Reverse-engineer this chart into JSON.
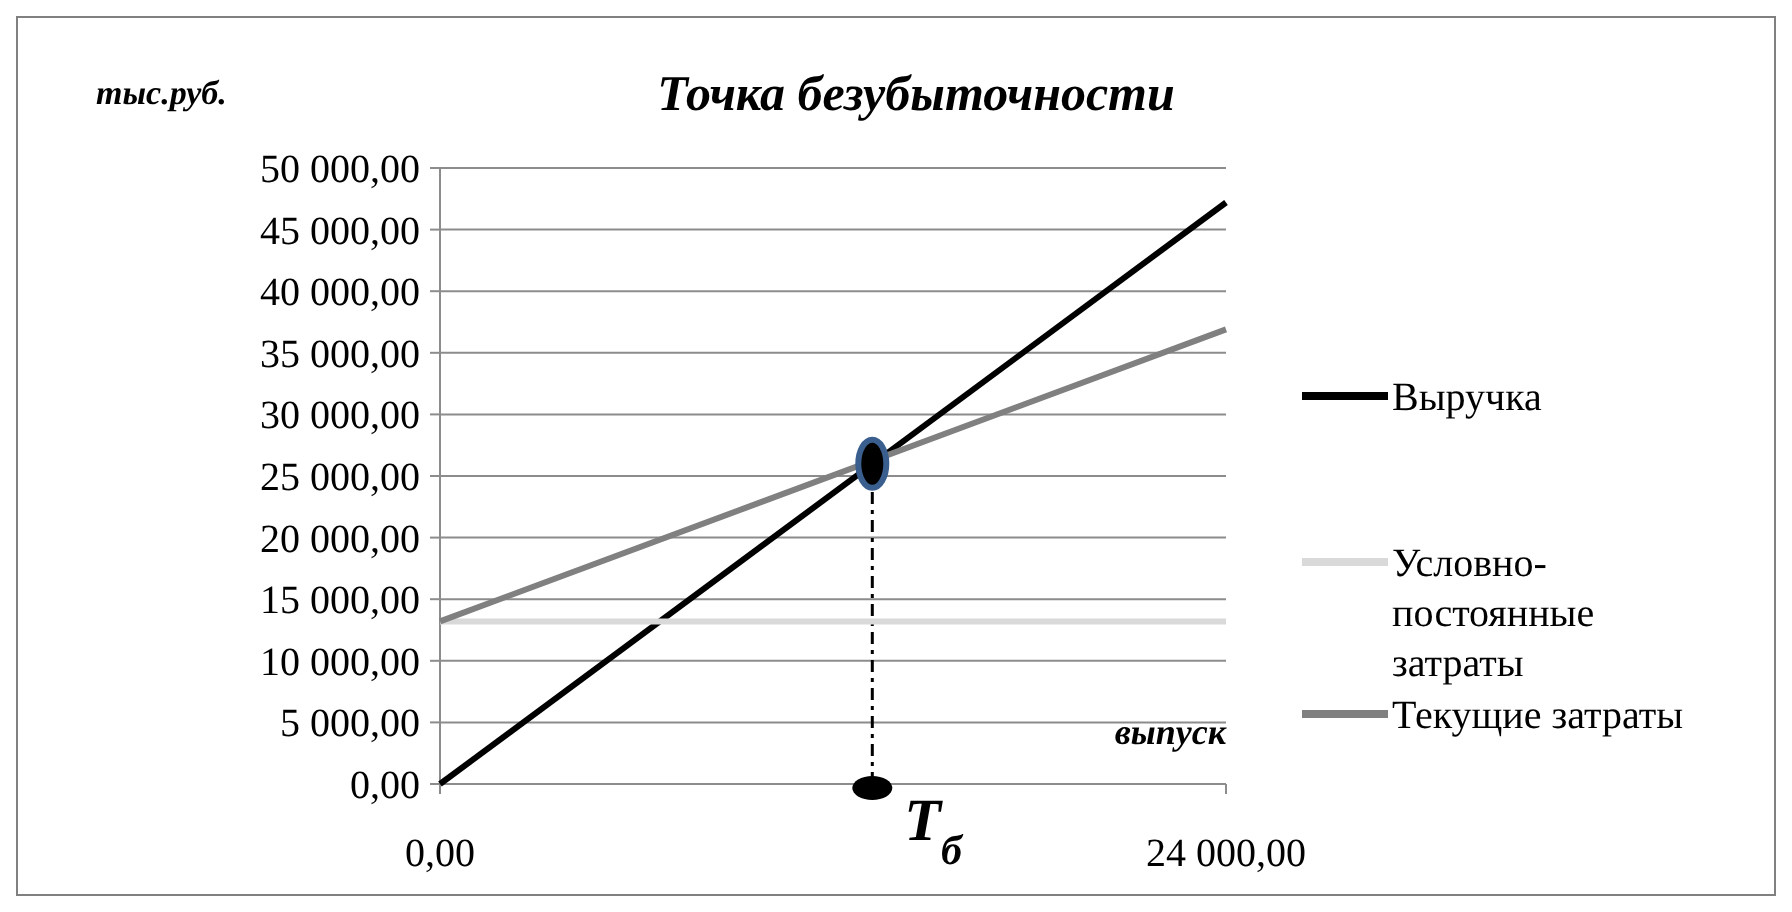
{
  "chart_data": {
    "type": "line",
    "title": "Точка безубыточности",
    "xlabel": "выпуск",
    "ylabel": "тыс.руб.",
    "xlim": [
      0,
      24000
    ],
    "ylim": [
      0,
      50000
    ],
    "xticks": [
      {
        "value": 0,
        "label": "0,00"
      },
      {
        "value": 24000,
        "label": "24 000,00"
      }
    ],
    "yticks": [
      {
        "value": 0,
        "label": "0,00"
      },
      {
        "value": 5000,
        "label": "5 000,00"
      },
      {
        "value": 10000,
        "label": "10 000,00"
      },
      {
        "value": 15000,
        "label": "15 000,00"
      },
      {
        "value": 20000,
        "label": "20 000,00"
      },
      {
        "value": 25000,
        "label": "25 000,00"
      },
      {
        "value": 30000,
        "label": "30 000,00"
      },
      {
        "value": 35000,
        "label": "35 000,00"
      },
      {
        "value": 40000,
        "label": "40 000,00"
      },
      {
        "value": 45000,
        "label": "45 000,00"
      },
      {
        "value": 50000,
        "label": "50 000,00"
      }
    ],
    "x": [
      0,
      24000
    ],
    "series": [
      {
        "name": "Выручка",
        "color": "#000000",
        "values": [
          0,
          47200
        ]
      },
      {
        "name": "Условно-постоянные затраты",
        "color": "#d9d9d9",
        "values": [
          13200,
          13200
        ]
      },
      {
        "name": "Текущие затраты",
        "color": "#808080",
        "values": [
          13200,
          36900
        ]
      },
      {
        "type": "scatter",
        "color": "#000000",
        "x": [
          13200
        ],
        "values": [
          26000
        ]
      }
    ],
    "ref_lines": [
      {
        "axis": "x",
        "value": 13200,
        "line_style": "dashed",
        "color": "#000000"
      }
    ],
    "annotations": [
      {
        "text": "T$_{б}$",
        "x": 13200,
        "y": 0
      }
    ],
    "grid": "y",
    "legend": "right"
  }
}
